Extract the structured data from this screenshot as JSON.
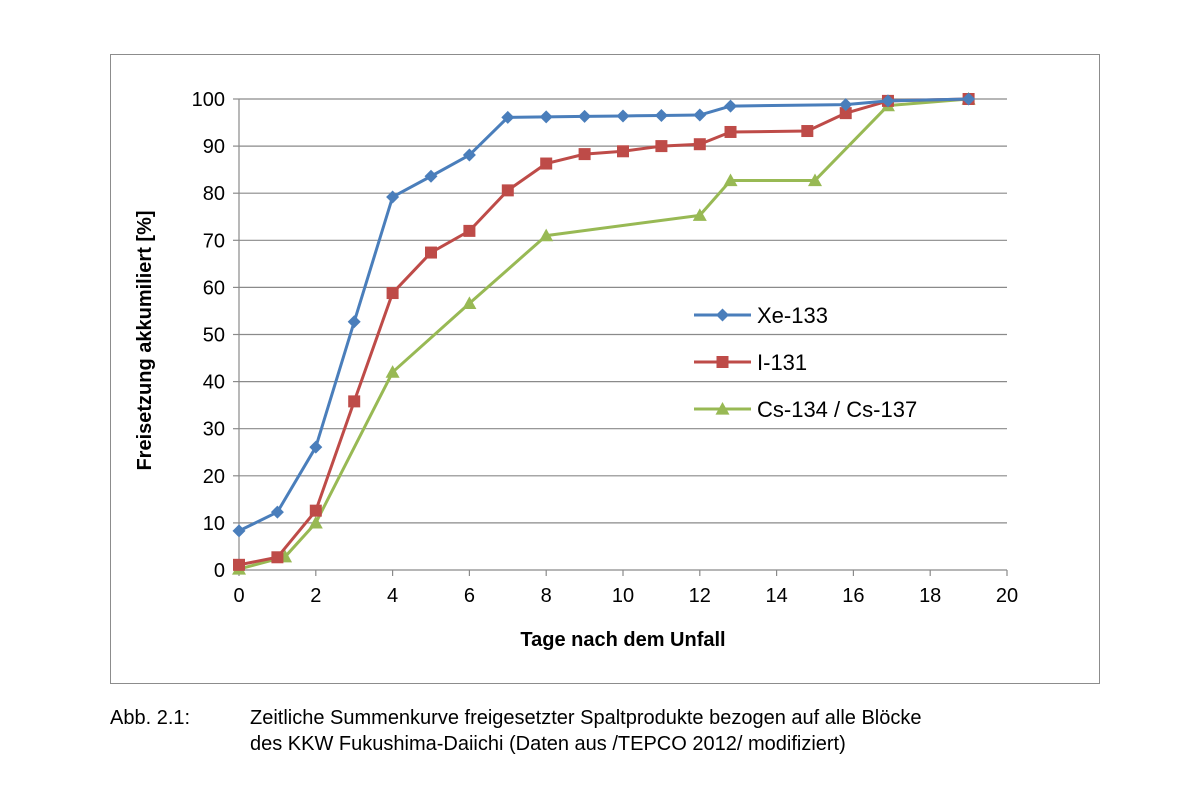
{
  "chart_data": {
    "type": "line",
    "xlabel": "Tage nach dem Unfall",
    "ylabel": "Freisetzung akkumiliert [%]",
    "xlim": [
      0,
      20
    ],
    "ylim": [
      0,
      100
    ],
    "xticks": [
      0,
      2,
      4,
      6,
      8,
      10,
      12,
      14,
      16,
      18,
      20
    ],
    "yticks": [
      0,
      10,
      20,
      30,
      40,
      50,
      60,
      70,
      80,
      90,
      100
    ],
    "grid": "horizontal",
    "legend_position": "right-center",
    "series": [
      {
        "name": "Xe-133",
        "color": "#4a7ebb",
        "marker": "diamond",
        "x": [
          0,
          1,
          2,
          3,
          4,
          5,
          6,
          7,
          8,
          9,
          10,
          11,
          12,
          12.8,
          15.8,
          16.9,
          19
        ],
        "y": [
          8.3,
          12.3,
          26.1,
          52.7,
          79.2,
          83.6,
          88.1,
          96.1,
          96.2,
          96.3,
          96.4,
          96.5,
          96.6,
          98.5,
          98.8,
          99.6,
          100
        ]
      },
      {
        "name": "I-131",
        "color": "#be4b48",
        "marker": "square",
        "x": [
          0,
          1,
          2,
          3,
          4,
          5,
          6,
          7,
          8,
          9,
          10,
          11,
          12,
          12.8,
          14.8,
          15.8,
          16.9,
          19
        ],
        "y": [
          1.1,
          2.7,
          12.6,
          35.8,
          58.8,
          67.4,
          72.0,
          80.6,
          86.3,
          88.3,
          88.9,
          90.0,
          90.4,
          93.0,
          93.2,
          97.0,
          99.6,
          100
        ]
      },
      {
        "name": "Cs-134 / Cs-137",
        "color": "#98b954",
        "marker": "triangle",
        "x": [
          0,
          1.2,
          2,
          4,
          6,
          8,
          12,
          12.8,
          15,
          16.9,
          19
        ],
        "y": [
          0.2,
          2.8,
          10.0,
          42.0,
          56.6,
          71.0,
          75.3,
          82.7,
          82.7,
          98.6,
          100
        ]
      }
    ]
  },
  "caption": {
    "label": "Abb. 2.1:",
    "lines": [
      "Zeitliche Summenkurve freigesetzter Spaltprodukte bezogen auf alle Blöcke",
      "des KKW Fukushima-Daiichi (Daten aus /TEPCO 2012/ modifiziert)"
    ]
  }
}
